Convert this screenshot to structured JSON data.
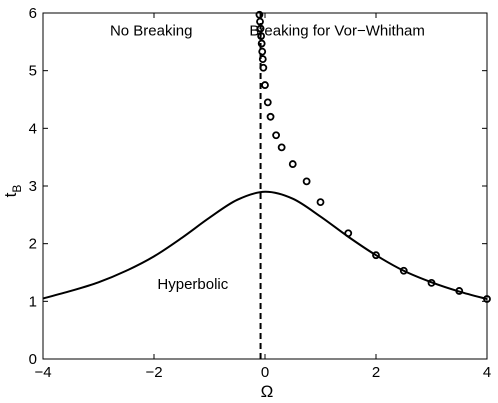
{
  "chart_data": {
    "type": "line",
    "title": "",
    "xlabel": "Ω",
    "ylabel": "t",
    "ylabel_subscript": "B",
    "xlim": [
      -4,
      4
    ],
    "ylim": [
      0,
      6
    ],
    "xticks": [
      "−4",
      "−2",
      "0",
      "2",
      "4"
    ],
    "yticks": [
      "0",
      "1",
      "2",
      "3",
      "4",
      "5",
      "6"
    ],
    "grid": false,
    "legend": "none",
    "annotations": [
      {
        "text": "No Breaking",
        "x": -2.05,
        "y": 5.7
      },
      {
        "text": "Breaking for Vor−Whitham",
        "x": 1.3,
        "y": 5.7
      },
      {
        "text": "Hyperbolic",
        "x": -1.3,
        "y": 1.3
      }
    ],
    "series": [
      {
        "style": "solid-line",
        "color": "#000000",
        "x": [
          -4.0,
          -3.5,
          -3.0,
          -2.5,
          -2.0,
          -1.5,
          -1.0,
          -0.5,
          0.0,
          0.5,
          1.0,
          1.5,
          2.0,
          2.5,
          3.0,
          3.5,
          4.0
        ],
        "values": [
          1.05,
          1.18,
          1.33,
          1.53,
          1.78,
          2.1,
          2.45,
          2.76,
          2.9,
          2.78,
          2.47,
          2.12,
          1.8,
          1.53,
          1.33,
          1.17,
          1.04
        ]
      },
      {
        "style": "dashed-line",
        "color": "#000000",
        "x": [
          -0.08,
          -0.08
        ],
        "values": [
          0,
          6
        ]
      },
      {
        "style": "circle-markers",
        "color": "#000000",
        "x": [
          -0.1,
          -0.09,
          -0.08,
          -0.07,
          -0.06,
          -0.05,
          -0.04,
          -0.03,
          0.0,
          0.05,
          0.1,
          0.2,
          0.3,
          0.5,
          0.75,
          1.0,
          1.5,
          2.0,
          2.5,
          3.0,
          3.5,
          4.0
        ],
        "values": [
          5.97,
          5.85,
          5.73,
          5.6,
          5.47,
          5.33,
          5.2,
          5.05,
          4.75,
          4.45,
          4.2,
          3.88,
          3.67,
          3.38,
          3.08,
          2.72,
          2.18,
          1.8,
          1.53,
          1.32,
          1.18,
          1.04
        ]
      }
    ]
  }
}
